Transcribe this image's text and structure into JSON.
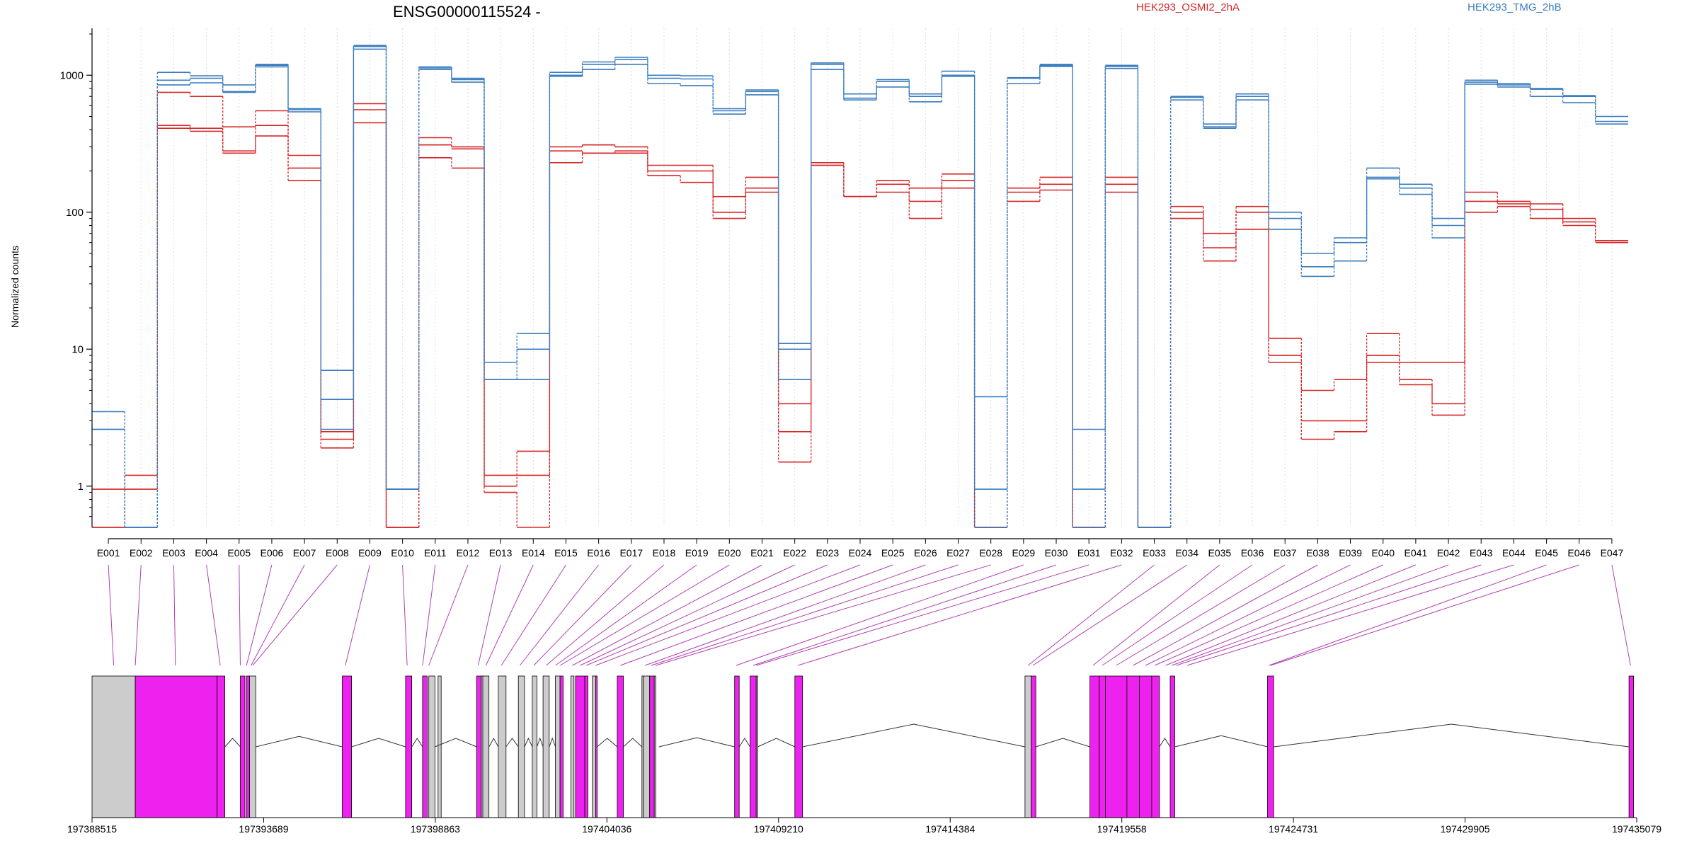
{
  "chart_data": {
    "type": "line",
    "title": "ENSG00000115524 -",
    "ylabel": "Normalized counts",
    "yscale": "log",
    "ylim": [
      0.5,
      2200
    ],
    "yticks": [
      1,
      10,
      100,
      1000
    ],
    "ytick_labels": [
      "1",
      "10",
      "100",
      "1000"
    ],
    "grid": true,
    "legend_position": "top",
    "categories": [
      "E001",
      "E002",
      "E003",
      "E004",
      "E005",
      "E006",
      "E007",
      "E008",
      "E009",
      "E010",
      "E011",
      "E012",
      "E013",
      "E014",
      "E015",
      "E016",
      "E017",
      "E018",
      "E019",
      "E020",
      "E021",
      "E022",
      "E023",
      "E024",
      "E025",
      "E026",
      "E027",
      "E028",
      "E029",
      "E030",
      "E031",
      "E032",
      "E033",
      "E034",
      "E035",
      "E036",
      "E037",
      "E038",
      "E039",
      "E040",
      "E041",
      "E042",
      "E043",
      "E044",
      "E045",
      "E046",
      "E047"
    ],
    "series": [
      {
        "name": "HEK293_OSMI2_2hA",
        "color": "#d62728",
        "replicates": [
          [
            0.5,
            1.2,
            750,
            700,
            420,
            550,
            260,
            1.9,
            620,
            0.5,
            350,
            300,
            1.2,
            1.8,
            300,
            310,
            300,
            220,
            220,
            130,
            180,
            4,
            230,
            130,
            170,
            150,
            190,
            0.5,
            150,
            180,
            0.5,
            180,
            0.5,
            110,
            70,
            110,
            12,
            5,
            6,
            13,
            8,
            8,
            140,
            120,
            115,
            90,
            62
          ],
          [
            0.95,
            0.95,
            430,
            410,
            280,
            430,
            210,
            2.5,
            560,
            0.5,
            310,
            290,
            1.0,
            1.2,
            280,
            270,
            280,
            200,
            200,
            100,
            150,
            2.5,
            220,
            130,
            160,
            120,
            170,
            0.5,
            140,
            160,
            0.5,
            160,
            0.5,
            100,
            55,
            100,
            9,
            3,
            3,
            9,
            6,
            4,
            120,
            115,
            105,
            85,
            62
          ],
          [
            0.5,
            0.5,
            410,
            390,
            270,
            360,
            170,
            2.2,
            450,
            0.5,
            250,
            210,
            0.9,
            0.5,
            230,
            270,
            270,
            185,
            165,
            90,
            140,
            1.5,
            220,
            130,
            140,
            90,
            150,
            0.5,
            120,
            145,
            0.5,
            140,
            0.5,
            90,
            44,
            75,
            8,
            2.2,
            2.5,
            8,
            5.5,
            3.3,
            100,
            110,
            90,
            80,
            60
          ]
        ]
      },
      {
        "name": "HEK293_TMG_2hB",
        "color": "#3a7dbf",
        "replicates": [
          [
            3.5,
            0.5,
            1050,
            990,
            850,
            1200,
            560,
            7,
            1650,
            0.95,
            1130,
            950,
            8,
            13,
            1050,
            1250,
            1350,
            1000,
            990,
            570,
            780,
            11,
            1230,
            730,
            930,
            730,
            1070,
            4.5,
            960,
            1200,
            2.6,
            1180,
            0.5,
            700,
            440,
            730,
            100,
            50,
            65,
            210,
            160,
            90,
            920,
            870,
            800,
            710,
            500
          ],
          [
            2.6,
            0.5,
            920,
            950,
            760,
            1180,
            570,
            4.3,
            1620,
            0.95,
            1150,
            930,
            6,
            10,
            1000,
            1200,
            1300,
            950,
            940,
            550,
            760,
            10,
            1200,
            680,
            900,
            700,
            1000,
            0.95,
            950,
            1180,
            0.95,
            1160,
            0.5,
            690,
            420,
            700,
            90,
            40,
            60,
            180,
            150,
            80,
            890,
            850,
            790,
            700,
            460
          ],
          [
            2.6,
            0.5,
            850,
            880,
            750,
            1150,
            540,
            2.6,
            1550,
            0.95,
            1100,
            890,
            6,
            6,
            980,
            1100,
            1200,
            870,
            840,
            520,
            720,
            6,
            1100,
            660,
            820,
            640,
            980,
            0.5,
            870,
            1160,
            0.5,
            1120,
            0.5,
            660,
            410,
            660,
            75,
            34,
            44,
            175,
            135,
            65,
            860,
            820,
            700,
            630,
            440
          ]
        ]
      }
    ],
    "gene_model": {
      "exon_colors": {
        "used": "#ee22ee",
        "unused": "#cccccc"
      },
      "coordinate_labels": [
        "197388515",
        "197393689",
        "197398863",
        "197404036",
        "197409210",
        "197414384",
        "197419558",
        "197424731",
        "197429905",
        "197435079"
      ]
    }
  }
}
